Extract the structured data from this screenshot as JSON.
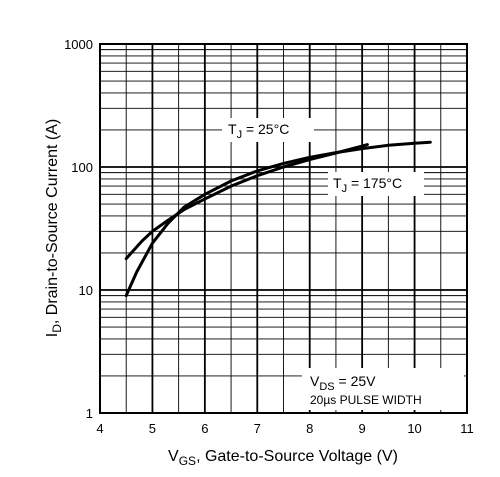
{
  "chart_data": {
    "type": "line",
    "title": "",
    "xlabel": {
      "main": "V",
      "sub": "GS",
      "rest": ", Gate-to-Source Voltage (V)"
    },
    "ylabel": {
      "main": "I",
      "sub": "D",
      "rest": ",  Drain-to-Source Current (A)"
    },
    "xlim": [
      4,
      11
    ],
    "ylim": [
      1,
      1000
    ],
    "yscale": "log",
    "grid": true,
    "x_ticks": [
      "4",
      "5",
      "6",
      "7",
      "8",
      "9",
      "10",
      "11"
    ],
    "y_ticks": [
      "1",
      "10",
      "100",
      "1000"
    ],
    "series": [
      {
        "name": {
          "main": "T",
          "sub": "J",
          "rest": " = 25°C"
        },
        "x": [
          4.5,
          4.8,
          5.0,
          5.3,
          5.6,
          6.0,
          6.5,
          7.0,
          7.5,
          8.0,
          8.5,
          9.0,
          9.1
        ],
        "y": [
          18,
          25,
          30,
          37,
          45,
          55,
          70,
          85,
          100,
          115,
          130,
          148,
          152
        ]
      },
      {
        "name": {
          "main": "T",
          "sub": "J",
          "rest": " = 175°C"
        },
        "x": [
          4.5,
          4.7,
          5.0,
          5.3,
          5.6,
          6.0,
          6.5,
          7.0,
          7.5,
          8.0,
          8.5,
          9.0,
          9.5,
          10.0,
          10.3
        ],
        "y": [
          9,
          14,
          24,
          35,
          47,
          60,
          77,
          93,
          107,
          120,
          131,
          141,
          150,
          156,
          159
        ]
      }
    ],
    "annotation": {
      "line1": {
        "main": "V",
        "sub": "DS",
        "rest": " = 25V"
      },
      "line2": "20µs PULSE WIDTH"
    }
  }
}
